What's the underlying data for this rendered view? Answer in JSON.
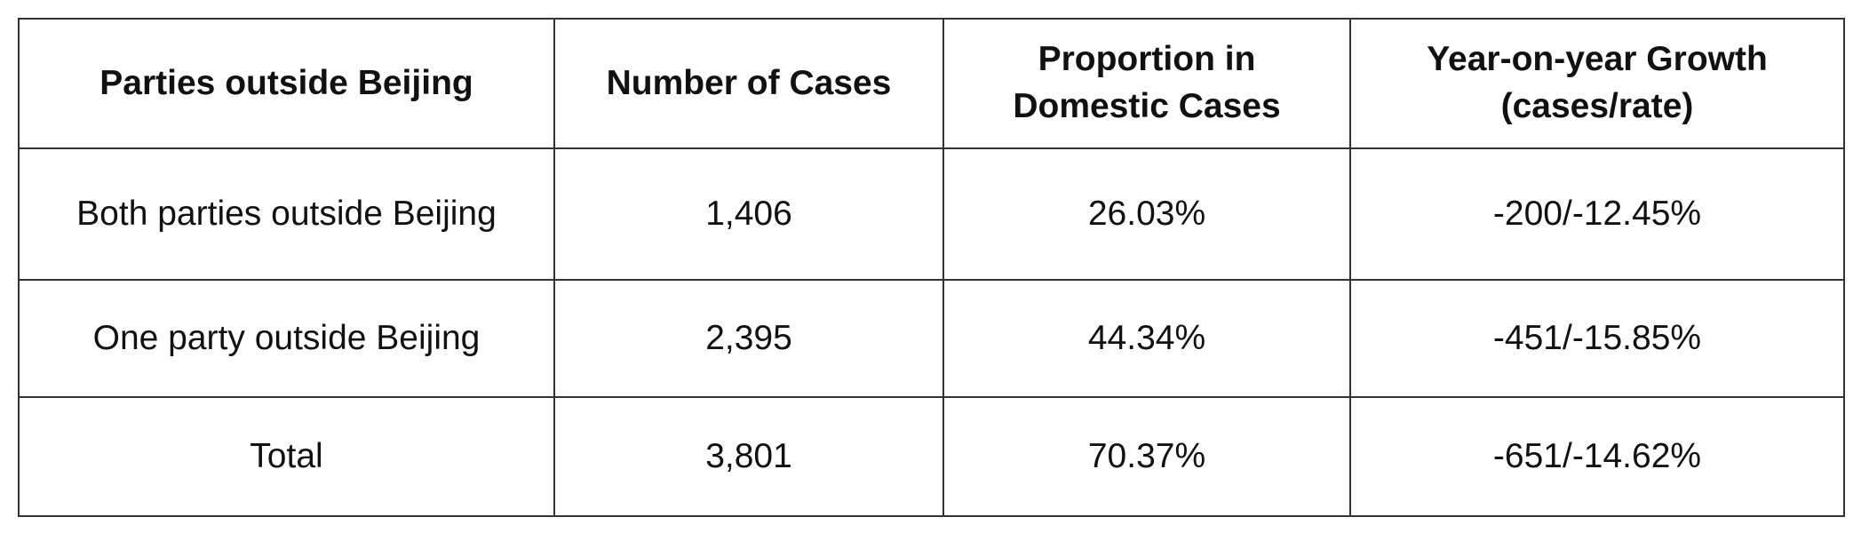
{
  "table": {
    "headers": [
      "Parties outside Beijing",
      "Number of Cases",
      "Proportion in Domestic Cases",
      "Year-on-year Growth (cases/rate)"
    ],
    "rows": [
      [
        "Both parties outside Beijing",
        "1,406",
        "26.03%",
        "-200/-12.45%"
      ],
      [
        "One party outside Beijing",
        "2,395",
        "44.34%",
        "-451/-15.85%"
      ],
      [
        "Total",
        "3,801",
        "70.37%",
        "-651/-14.62%"
      ]
    ]
  }
}
